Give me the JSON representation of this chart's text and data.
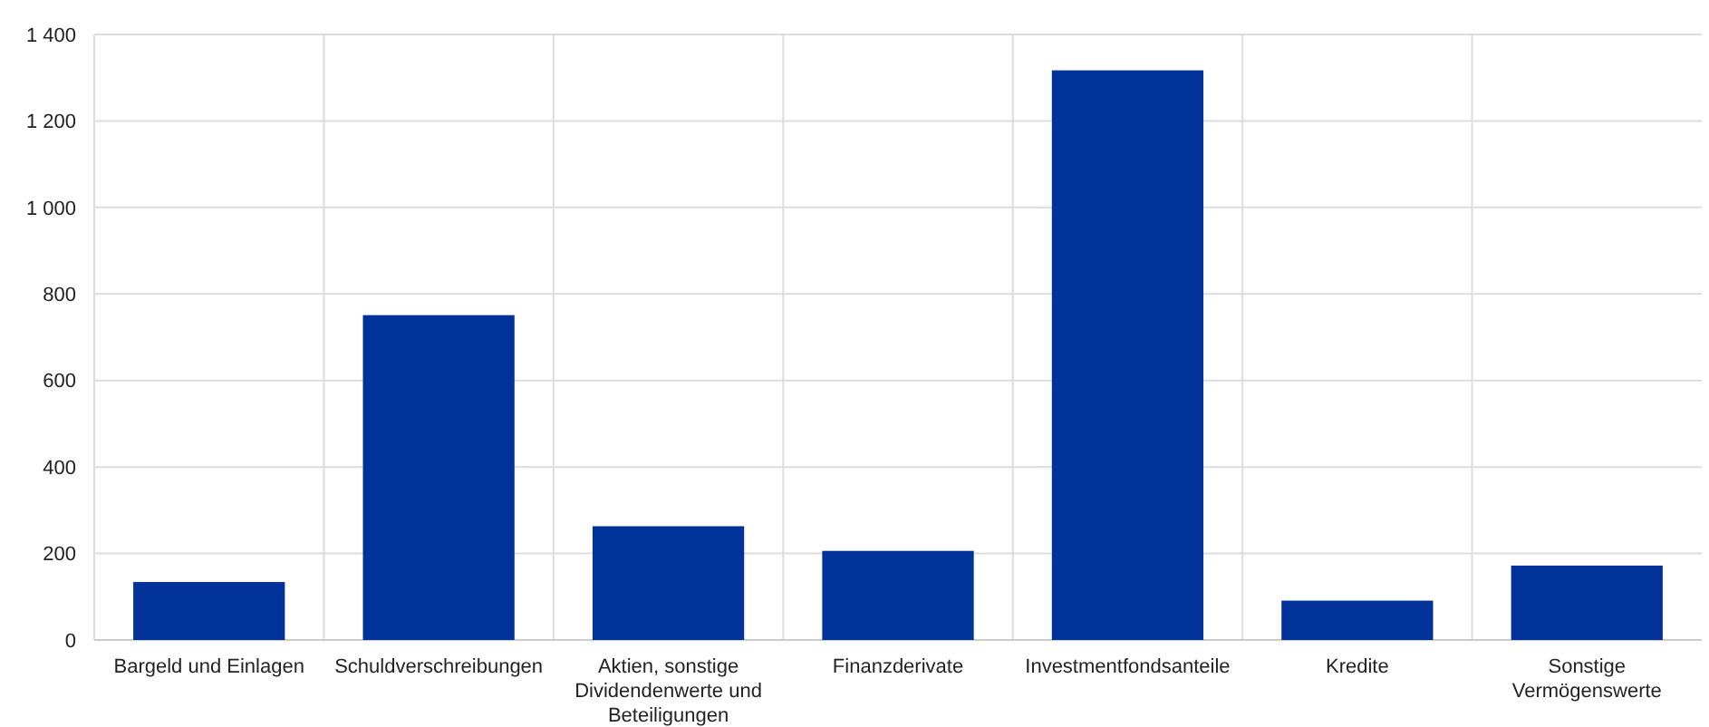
{
  "chart_data": {
    "type": "bar",
    "categories": [
      "Bargeld und Einlagen",
      "Schuldverschreibungen",
      "Aktien, sonstige Dividendenwerte und Beteiligungen",
      "Finanzderivate",
      "Investmentfondsanteile",
      "Kredite",
      "Sonstige Vermögenswerte"
    ],
    "values": [
      134,
      751,
      263,
      206,
      1317,
      91,
      172
    ],
    "color": "#003299",
    "ylim": [
      0,
      1400
    ],
    "yticks": [
      0,
      200,
      400,
      600,
      800,
      {
        "value": 1000,
        "label": "1 000"
      },
      {
        "value": 1200,
        "label": "1 200"
      },
      {
        "value": 1400,
        "label": "1 400"
      }
    ],
    "grid": true
  }
}
